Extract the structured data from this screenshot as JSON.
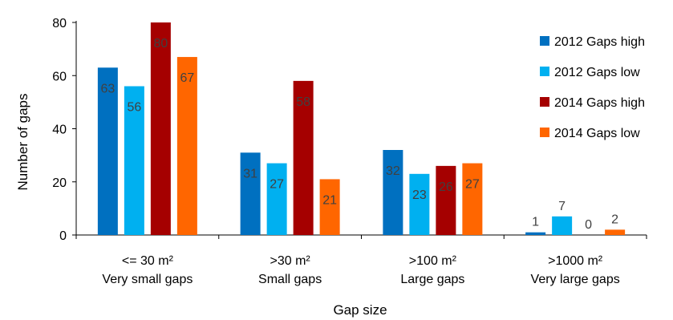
{
  "chart_data": {
    "type": "bar",
    "title": "",
    "xlabel": "Gap size",
    "ylabel": "Number of gaps",
    "ylim": [
      0,
      80
    ],
    "yticks": [
      0,
      20,
      40,
      60,
      80
    ],
    "categories": [
      [
        "<= 30 m²",
        "Very small gaps"
      ],
      [
        ">30 m²",
        "Small gaps"
      ],
      [
        ">100 m²",
        "Large gaps"
      ],
      [
        ">1000 m²",
        "Very large gaps"
      ]
    ],
    "series": [
      {
        "name": "2012 Gaps high",
        "color": "#0070C0",
        "values": [
          63,
          31,
          32,
          1
        ]
      },
      {
        "name": "2012 Gaps low",
        "color": "#00B0F0",
        "values": [
          56,
          27,
          23,
          7
        ]
      },
      {
        "name": "2014 Gaps high",
        "color": "#A50000",
        "values": [
          80,
          58,
          26,
          0
        ]
      },
      {
        "name": "2014 Gaps low",
        "color": "#FF6600",
        "values": [
          67,
          21,
          27,
          2
        ]
      }
    ],
    "grid": false,
    "legend_position": "right"
  }
}
